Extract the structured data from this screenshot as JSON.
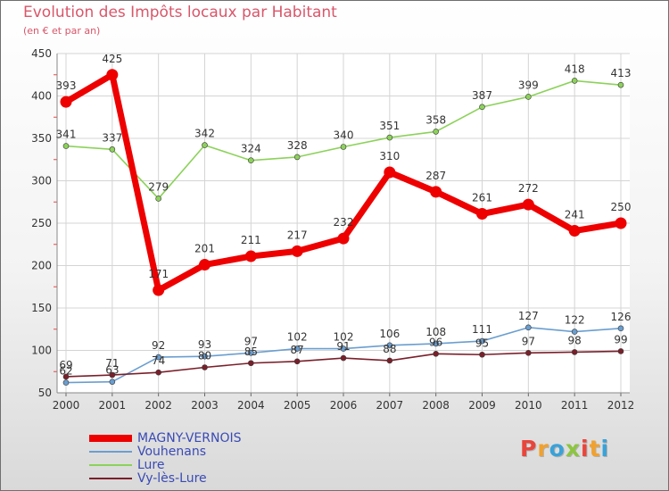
{
  "header": {
    "title": "Evolution des Impôts locaux par Habitant",
    "subtitle": "(en € et par an)"
  },
  "logo": {
    "text": "Proxiti",
    "colors": [
      "#e8463c",
      "#f2a12c",
      "#3aa2d8",
      "#8cc63f"
    ]
  },
  "chart_data": {
    "type": "line",
    "title": "Evolution des Impôts locaux par Habitant",
    "subtitle": "(en € et par an)",
    "x": [
      "2000",
      "2001",
      "2002",
      "2003",
      "2004",
      "2005",
      "2006",
      "2007",
      "2008",
      "2009",
      "2010",
      "2011",
      "2012"
    ],
    "ylim": [
      50,
      450
    ],
    "yticks": [
      "50",
      "100",
      "150",
      "200",
      "250",
      "300",
      "350",
      "400",
      "450"
    ],
    "grid": true,
    "legend_position": "bottom-left",
    "series": [
      {
        "name": "MAGNY-VERNOIS",
        "color": "#ee0000",
        "values": [
          393,
          425,
          171,
          201,
          211,
          217,
          232,
          310,
          287,
          261,
          272,
          241,
          250
        ]
      },
      {
        "name": "Vouhenans",
        "color": "#6a9ed0",
        "values": [
          62,
          63,
          92,
          93,
          97,
          102,
          102,
          106,
          108,
          111,
          127,
          122,
          126
        ]
      },
      {
        "name": "Lure",
        "color": "#8cd25a",
        "values": [
          341,
          337,
          279,
          342,
          324,
          328,
          340,
          351,
          358,
          387,
          399,
          418,
          413
        ]
      },
      {
        "name": "Vy-lès-Lure",
        "color": "#7a1f2a",
        "values": [
          69,
          71,
          74,
          80,
          85,
          87,
          91,
          88,
          96,
          95,
          97,
          98,
          99
        ]
      }
    ]
  }
}
